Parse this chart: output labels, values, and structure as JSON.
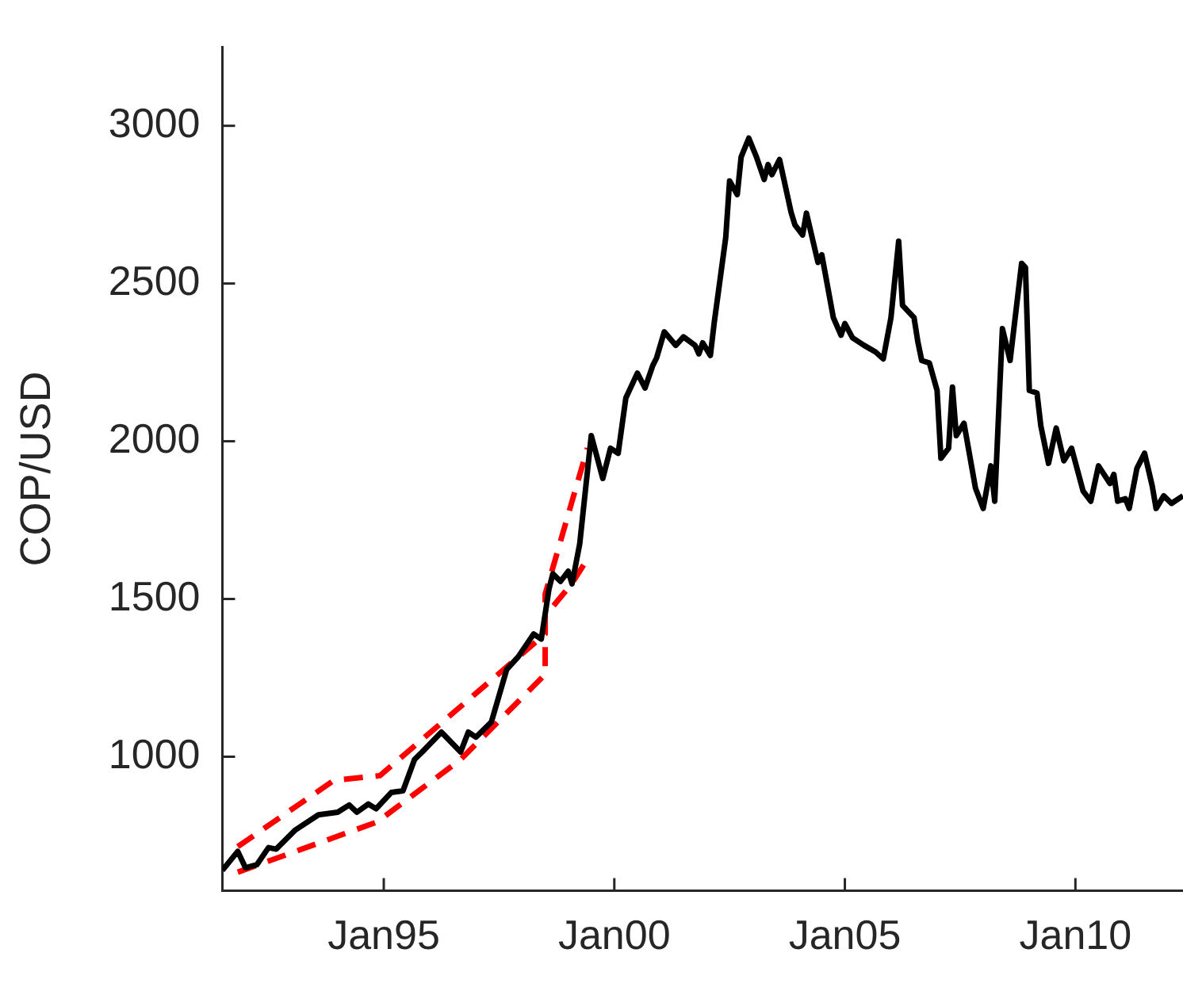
{
  "chart_data": {
    "type": "line",
    "ylabel": "COP/USD",
    "xlim": [
      "1991-07",
      "2012-05"
    ],
    "ylim": [
      575,
      3250
    ],
    "xticks": [
      {
        "value": "1995-01",
        "label": "Jan95"
      },
      {
        "value": "2000-01",
        "label": "Jan00"
      },
      {
        "value": "2005-01",
        "label": "Jan05"
      },
      {
        "value": "2010-01",
        "label": "Jan10"
      }
    ],
    "yticks": [
      1000,
      1500,
      2000,
      2500,
      3000
    ],
    "grid": false,
    "legend": false,
    "marker": "none",
    "series": [
      {
        "color": "#000000",
        "line_style": "solid",
        "x": [
          "1991-07",
          "1991-11",
          "1992-01",
          "1992-04",
          "1992-07",
          "1992-09",
          "1993-02",
          "1993-08",
          "1994-01",
          "1994-04",
          "1994-06",
          "1994-09",
          "1994-11",
          "1995-03",
          "1995-06",
          "1995-09",
          "1995-11",
          "1996-04",
          "1996-09",
          "1996-11",
          "1997-01",
          "1997-05",
          "1997-09",
          "1997-12",
          "1998-04",
          "1998-06",
          "1998-08",
          "1998-09",
          "1998-11",
          "1999-01",
          "1999-02",
          "1999-04",
          "1999-07",
          "1999-10",
          "1999-12",
          "2000-02",
          "2000-04",
          "2000-07",
          "2000-09",
          "2000-11",
          "2000-12",
          "2001-02",
          "2001-05",
          "2001-07",
          "2001-10",
          "2001-11",
          "2001-12",
          "2002-02",
          "2002-03",
          "2002-06",
          "2002-07",
          "2002-09",
          "2002-10",
          "2002-12",
          "2003-02",
          "2003-04",
          "2003-05",
          "2003-06",
          "2003-08",
          "2003-11",
          "2003-12",
          "2004-02",
          "2004-03",
          "2004-06",
          "2004-07",
          "2004-10",
          "2004-12",
          "2005-01",
          "2005-03",
          "2005-06",
          "2005-09",
          "2005-11",
          "2006-01",
          "2006-03",
          "2006-04",
          "2006-07",
          "2006-08",
          "2006-09",
          "2006-11",
          "2007-01",
          "2007-02",
          "2007-04",
          "2007-05",
          "2007-06",
          "2007-08",
          "2007-11",
          "2008-01",
          "2008-03",
          "2008-04",
          "2008-06",
          "2008-08",
          "2008-11",
          "2008-12",
          "2009-01",
          "2009-03",
          "2009-04",
          "2009-06",
          "2009-08",
          "2009-10",
          "2009-12",
          "2010-03",
          "2010-05",
          "2010-07",
          "2010-10",
          "2010-11",
          "2010-12",
          "2011-02",
          "2011-03",
          "2011-05",
          "2011-07",
          "2011-09",
          "2011-10",
          "2011-12",
          "2012-02",
          "2012-05"
        ],
        "values": [
          640,
          700,
          648,
          658,
          712,
          707,
          768,
          816,
          824,
          847,
          824,
          850,
          835,
          887,
          892,
          991,
          1015,
          1078,
          1015,
          1078,
          1062,
          1110,
          1277,
          1317,
          1389,
          1373,
          1532,
          1580,
          1556,
          1588,
          1548,
          1675,
          2018,
          1882,
          1978,
          1962,
          2137,
          2216,
          2169,
          2240,
          2264,
          2347,
          2304,
          2331,
          2304,
          2277,
          2312,
          2272,
          2376,
          2646,
          2825,
          2782,
          2901,
          2961,
          2901,
          2830,
          2877,
          2845,
          2893,
          2726,
          2686,
          2654,
          2723,
          2567,
          2591,
          2392,
          2336,
          2373,
          2328,
          2304,
          2283,
          2261,
          2392,
          2634,
          2431,
          2392,
          2315,
          2256,
          2248,
          2161,
          1946,
          1978,
          2172,
          2018,
          2057,
          1851,
          1787,
          1922,
          1810,
          2357,
          2256,
          2564,
          2551,
          2161,
          2153,
          2049,
          1930,
          2042,
          1938,
          1978,
          1842,
          1810,
          1922,
          1866,
          1895,
          1810,
          1818,
          1787,
          1914,
          1962,
          1858,
          1787,
          1827,
          1803,
          1827
        ]
      },
      {
        "color": "#ff0000",
        "line_style": "dashed",
        "x": [
          "1991-11",
          "1993-12",
          "1994-12",
          "1998-07",
          "1998-07",
          "1999-06"
        ],
        "values": [
          715,
          925,
          940,
          1389,
          1515,
          1978
        ]
      },
      {
        "color": "#ff0000",
        "line_style": "dashed",
        "x": [
          "1991-11",
          "1994-11",
          "1994-12",
          "1996-09",
          "1998-07",
          "1998-07",
          "1999-02",
          "1999-06"
        ],
        "values": [
          634,
          792,
          800,
          991,
          1261,
          1446,
          1550,
          1627
        ]
      }
    ]
  }
}
